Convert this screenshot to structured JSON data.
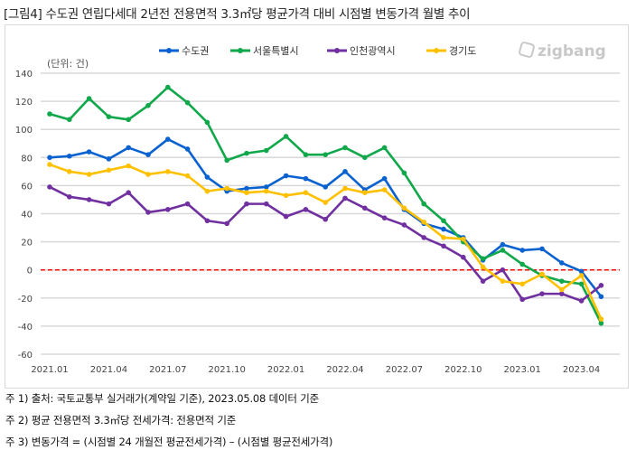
{
  "title": "[그림4] 수도권 연립다세대 2년전 전용면적 3.3㎡당 평균가격 대비 시점별 변동가격 월별 추이",
  "watermark": "zigbang",
  "notes": [
    "주 1)  출처: 국토교통부 실거래가(계약일 기준), 2023.05.08 데이터 기준",
    "주 2)  평균 전용면적 3.3㎡당 전세가격: 전용면적 기준",
    "주 3)  변동가격 = (시점별 24 개월전 평균전세가격) – (시점별 평균전세가격)"
  ],
  "chart_data": {
    "type": "line",
    "unit_label": "(단위: 건)",
    "ylim": [
      -60,
      140
    ],
    "yticks": [
      140,
      120,
      100,
      80,
      60,
      40,
      20,
      0,
      -20,
      -40,
      -60
    ],
    "grid": true,
    "legend_position": "top-center",
    "reference_line": {
      "y": 0,
      "color": "#ff0000",
      "style": "dashed"
    },
    "x": [
      "2021.01",
      "2021.02",
      "2021.03",
      "2021.04",
      "2021.05",
      "2021.06",
      "2021.07",
      "2021.08",
      "2021.09",
      "2021.10",
      "2021.11",
      "2021.12",
      "2022.01",
      "2022.02",
      "2022.03",
      "2022.04",
      "2022.05",
      "2022.06",
      "2022.07",
      "2022.08",
      "2022.09",
      "2022.10",
      "2022.11",
      "2022.12",
      "2023.01",
      "2023.02",
      "2023.03",
      "2023.04",
      "2023.05"
    ],
    "xtick_labels": [
      "2021.01",
      "2021.04",
      "2021.07",
      "2021.10",
      "2022.01",
      "2022.04",
      "2022.07",
      "2022.10",
      "2023.01",
      "2023.04"
    ],
    "series": [
      {
        "name": "수도권",
        "color": "#0a62d0",
        "values": [
          80,
          81,
          84,
          79,
          87,
          82,
          93,
          86,
          66,
          56,
          58,
          59,
          67,
          65,
          59,
          70,
          57,
          65,
          43,
          33,
          29,
          23,
          7,
          18,
          14,
          15,
          5,
          -1,
          -19
        ]
      },
      {
        "name": "서울특별시",
        "color": "#10a84a",
        "values": [
          111,
          107,
          122,
          109,
          107,
          117,
          130,
          119,
          105,
          78,
          83,
          85,
          95,
          82,
          82,
          87,
          80,
          87,
          69,
          47,
          35,
          20,
          8,
          14,
          4,
          -4,
          -8,
          -10,
          -38
        ]
      },
      {
        "name": "인천광역시",
        "color": "#7030a0",
        "values": [
          59,
          52,
          50,
          47,
          55,
          41,
          43,
          47,
          35,
          33,
          47,
          47,
          38,
          43,
          36,
          51,
          44,
          37,
          32,
          23,
          17,
          9,
          -8,
          0,
          -21,
          -17,
          -17,
          -22,
          -11
        ]
      },
      {
        "name": "경기도",
        "color": "#ffc000",
        "values": [
          75,
          70,
          68,
          71,
          74,
          68,
          70,
          67,
          56,
          58,
          55,
          56,
          53,
          55,
          48,
          58,
          55,
          57,
          44,
          34,
          23,
          22,
          2,
          -8,
          -10,
          -3,
          -14,
          -4,
          -35
        ]
      }
    ]
  }
}
